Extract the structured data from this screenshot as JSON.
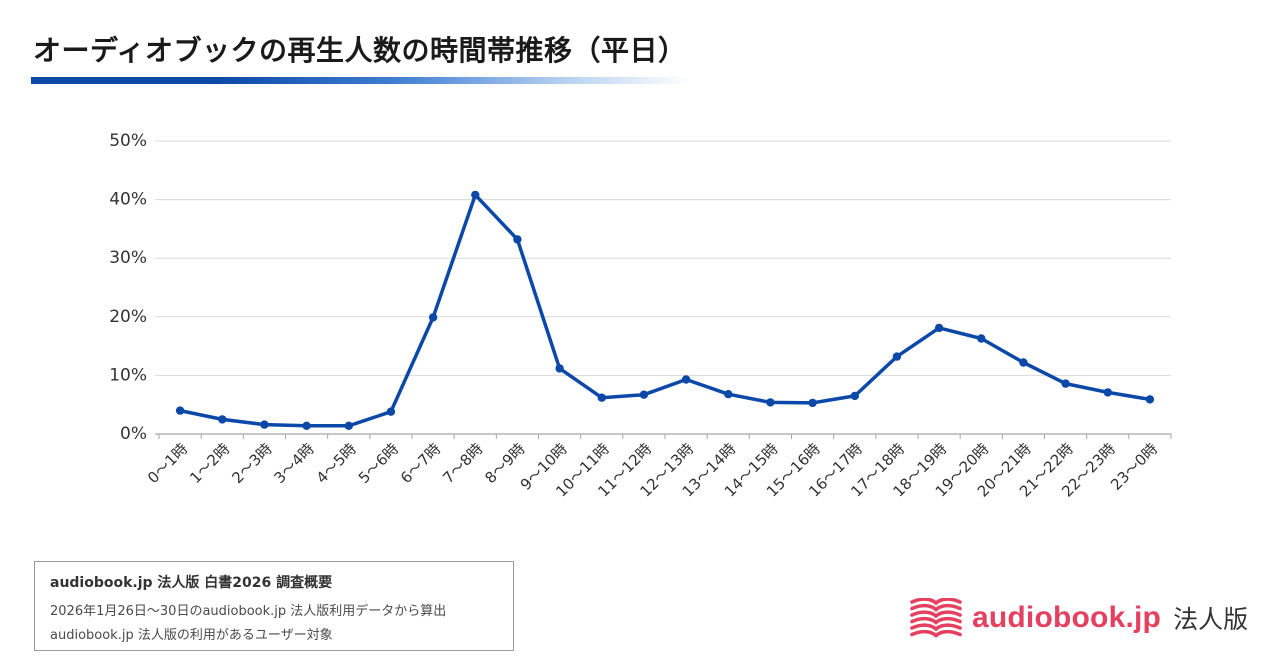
{
  "colors": {
    "title_text": "#1a1a1a",
    "accent_bar": "#0b48a8",
    "series_line": "#0b48a8",
    "gridline": "#d9d9d9",
    "axis_line": "#a6a6a6",
    "brand": "#e5405f",
    "logo_suffix": "#333333"
  },
  "chart_data": {
    "type": "line",
    "title": "オーディオブックの再生人数の時間帯推移（平日）",
    "categories": [
      "0〜1時",
      "1〜2時",
      "2〜3時",
      "3〜4時",
      "4〜5時",
      "5〜6時",
      "6〜7時",
      "7〜8時",
      "8〜9時",
      "9〜10時",
      "10〜11時",
      "11〜12時",
      "12〜13時",
      "13〜14時",
      "14〜15時",
      "15〜16時",
      "16〜17時",
      "17〜18時",
      "18〜19時",
      "19〜20時",
      "20〜21時",
      "21〜22時",
      "22〜23時",
      "23〜0時"
    ],
    "series": [
      {
        "values": [
          4.0,
          2.5,
          1.6,
          1.4,
          1.4,
          3.8,
          19.9,
          40.8,
          33.2,
          11.2,
          6.2,
          6.7,
          9.3,
          6.8,
          5.4,
          5.3,
          6.5,
          13.2,
          18.1,
          16.3,
          12.2,
          8.6,
          7.1,
          5.9
        ]
      }
    ],
    "ylim": [
      0,
      50
    ],
    "yticks": [
      0,
      10,
      20,
      30,
      40,
      50
    ],
    "ytick_labels": [
      "0%",
      "10%",
      "20%",
      "30%",
      "40%",
      "50%"
    ],
    "grid": true,
    "legend": "none"
  },
  "survey": {
    "heading": "audiobook.jp 法人版 白書2026 調査概要",
    "lines": [
      "2026年1月26日〜30日のaudiobook.jp 法人版利用データから算出",
      "audiobook.jp 法人版の利用があるユーザー対象"
    ]
  },
  "logo": {
    "icon": "audiobook-logo-icon",
    "name": "audiobook.jp",
    "suffix": "法人版"
  }
}
